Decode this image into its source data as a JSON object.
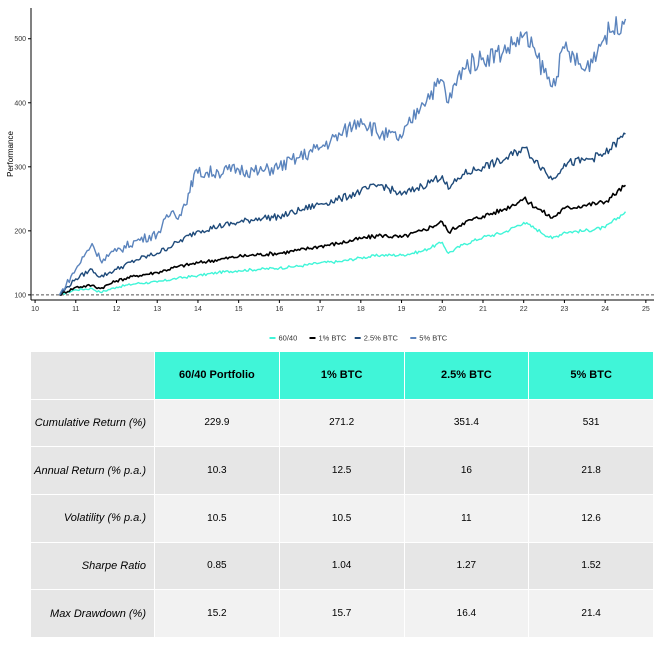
{
  "chart_data": {
    "type": "line",
    "title": "",
    "xlabel": "",
    "ylabel": "Performance",
    "xlim": [
      9.9,
      25.2
    ],
    "ylim": [
      92,
      548
    ],
    "x_ticks": [
      10,
      11,
      12,
      13,
      14,
      15,
      16,
      17,
      18,
      19,
      20,
      21,
      22,
      23,
      24,
      25
    ],
    "y_ticks": [
      100,
      200,
      300,
      400,
      500
    ],
    "reference_line": 100,
    "grid": false,
    "legend_position": "bottom",
    "series": [
      {
        "name": "60/40",
        "color": "#40f5d8",
        "x": [
          10.6,
          11,
          11.4,
          11.6,
          12,
          12.5,
          13,
          13.5,
          14,
          14.5,
          15,
          15.5,
          16,
          16.5,
          17,
          17.5,
          18,
          18.5,
          19,
          19.5,
          20,
          20.15,
          20.5,
          21,
          21.5,
          22,
          22.3,
          22.7,
          23,
          23.5,
          24,
          24.5
        ],
        "y": [
          100,
          108,
          110,
          104,
          112,
          118,
          120,
          126,
          130,
          135,
          138,
          140,
          142,
          145,
          150,
          152,
          158,
          162,
          162,
          168,
          182,
          165,
          178,
          190,
          197,
          213,
          203,
          188,
          198,
          200,
          205,
          229.9
        ]
      },
      {
        "name": "1% BTC",
        "color": "#000000",
        "x": [
          10.6,
          11,
          11.4,
          11.6,
          12,
          12.5,
          13,
          13.5,
          14,
          14.5,
          15,
          15.5,
          16,
          16.5,
          17,
          17.5,
          18,
          18.5,
          19,
          19.5,
          20,
          20.15,
          20.5,
          21,
          21.5,
          22,
          22.3,
          22.7,
          23,
          23.5,
          24,
          24.5
        ],
        "y": [
          100,
          112,
          115,
          110,
          122,
          130,
          135,
          144,
          150,
          155,
          160,
          163,
          165,
          170,
          176,
          181,
          188,
          193,
          190,
          200,
          214,
          198,
          212,
          223,
          233,
          250,
          237,
          220,
          235,
          240,
          245,
          271.2
        ]
      },
      {
        "name": "2.5% BTC",
        "color": "#1e4a7a",
        "x": [
          10.6,
          11,
          11.4,
          11.6,
          12,
          12.5,
          13,
          13.5,
          14,
          14.5,
          15,
          15.5,
          16,
          16.5,
          17,
          17.5,
          18,
          18.5,
          19,
          19.5,
          20,
          20.15,
          20.5,
          21,
          21.5,
          22,
          22.3,
          22.7,
          23,
          23.5,
          24,
          24.5
        ],
        "y": [
          100,
          125,
          140,
          128,
          140,
          155,
          165,
          182,
          200,
          207,
          213,
          220,
          222,
          232,
          242,
          250,
          262,
          272,
          256,
          270,
          286,
          265,
          288,
          300,
          310,
          330,
          310,
          280,
          305,
          310,
          320,
          351.4
        ]
      },
      {
        "name": "5% BTC",
        "color": "#5b84bd",
        "x": [
          10.6,
          11,
          11.4,
          11.6,
          12,
          12.5,
          13,
          13.35,
          13.55,
          13.8,
          13.9,
          14,
          14.5,
          15,
          15.5,
          16,
          16.5,
          17,
          17.5,
          18,
          18.5,
          19,
          19.5,
          20,
          20.15,
          20.5,
          21,
          21.5,
          22,
          22.3,
          22.7,
          23,
          23.5,
          24,
          24.5
        ],
        "y": [
          100,
          140,
          180,
          155,
          168,
          185,
          195,
          230,
          225,
          260,
          288,
          290,
          292,
          296,
          292,
          300,
          315,
          330,
          350,
          375,
          350,
          345,
          400,
          435,
          400,
          455,
          470,
          480,
          505,
          475,
          425,
          485,
          450,
          505,
          531
        ]
      }
    ]
  },
  "legend": {
    "items": [
      "60/40",
      "1% BTC",
      "2.5% BTC",
      "5% BTC"
    ]
  },
  "table": {
    "columns": [
      "60/40 Portfolio",
      "1% BTC",
      "2.5% BTC",
      "5% BTC"
    ],
    "rows": [
      {
        "label": "Cumulative Return (%)",
        "values": [
          "229.9",
          "271.2",
          "351.4",
          "531"
        ]
      },
      {
        "label": "Annual Return (% p.a.)",
        "values": [
          "10.3",
          "12.5",
          "16",
          "21.8"
        ]
      },
      {
        "label": "Volatility (% p.a.)",
        "values": [
          "10.5",
          "10.5",
          "11",
          "12.6"
        ]
      },
      {
        "label": "Sharpe Ratio",
        "values": [
          "0.85",
          "1.04",
          "1.27",
          "1.52"
        ]
      },
      {
        "label": "Max Drawdown (%)",
        "values": [
          "15.2",
          "15.7",
          "16.4",
          "21.4"
        ]
      }
    ]
  }
}
